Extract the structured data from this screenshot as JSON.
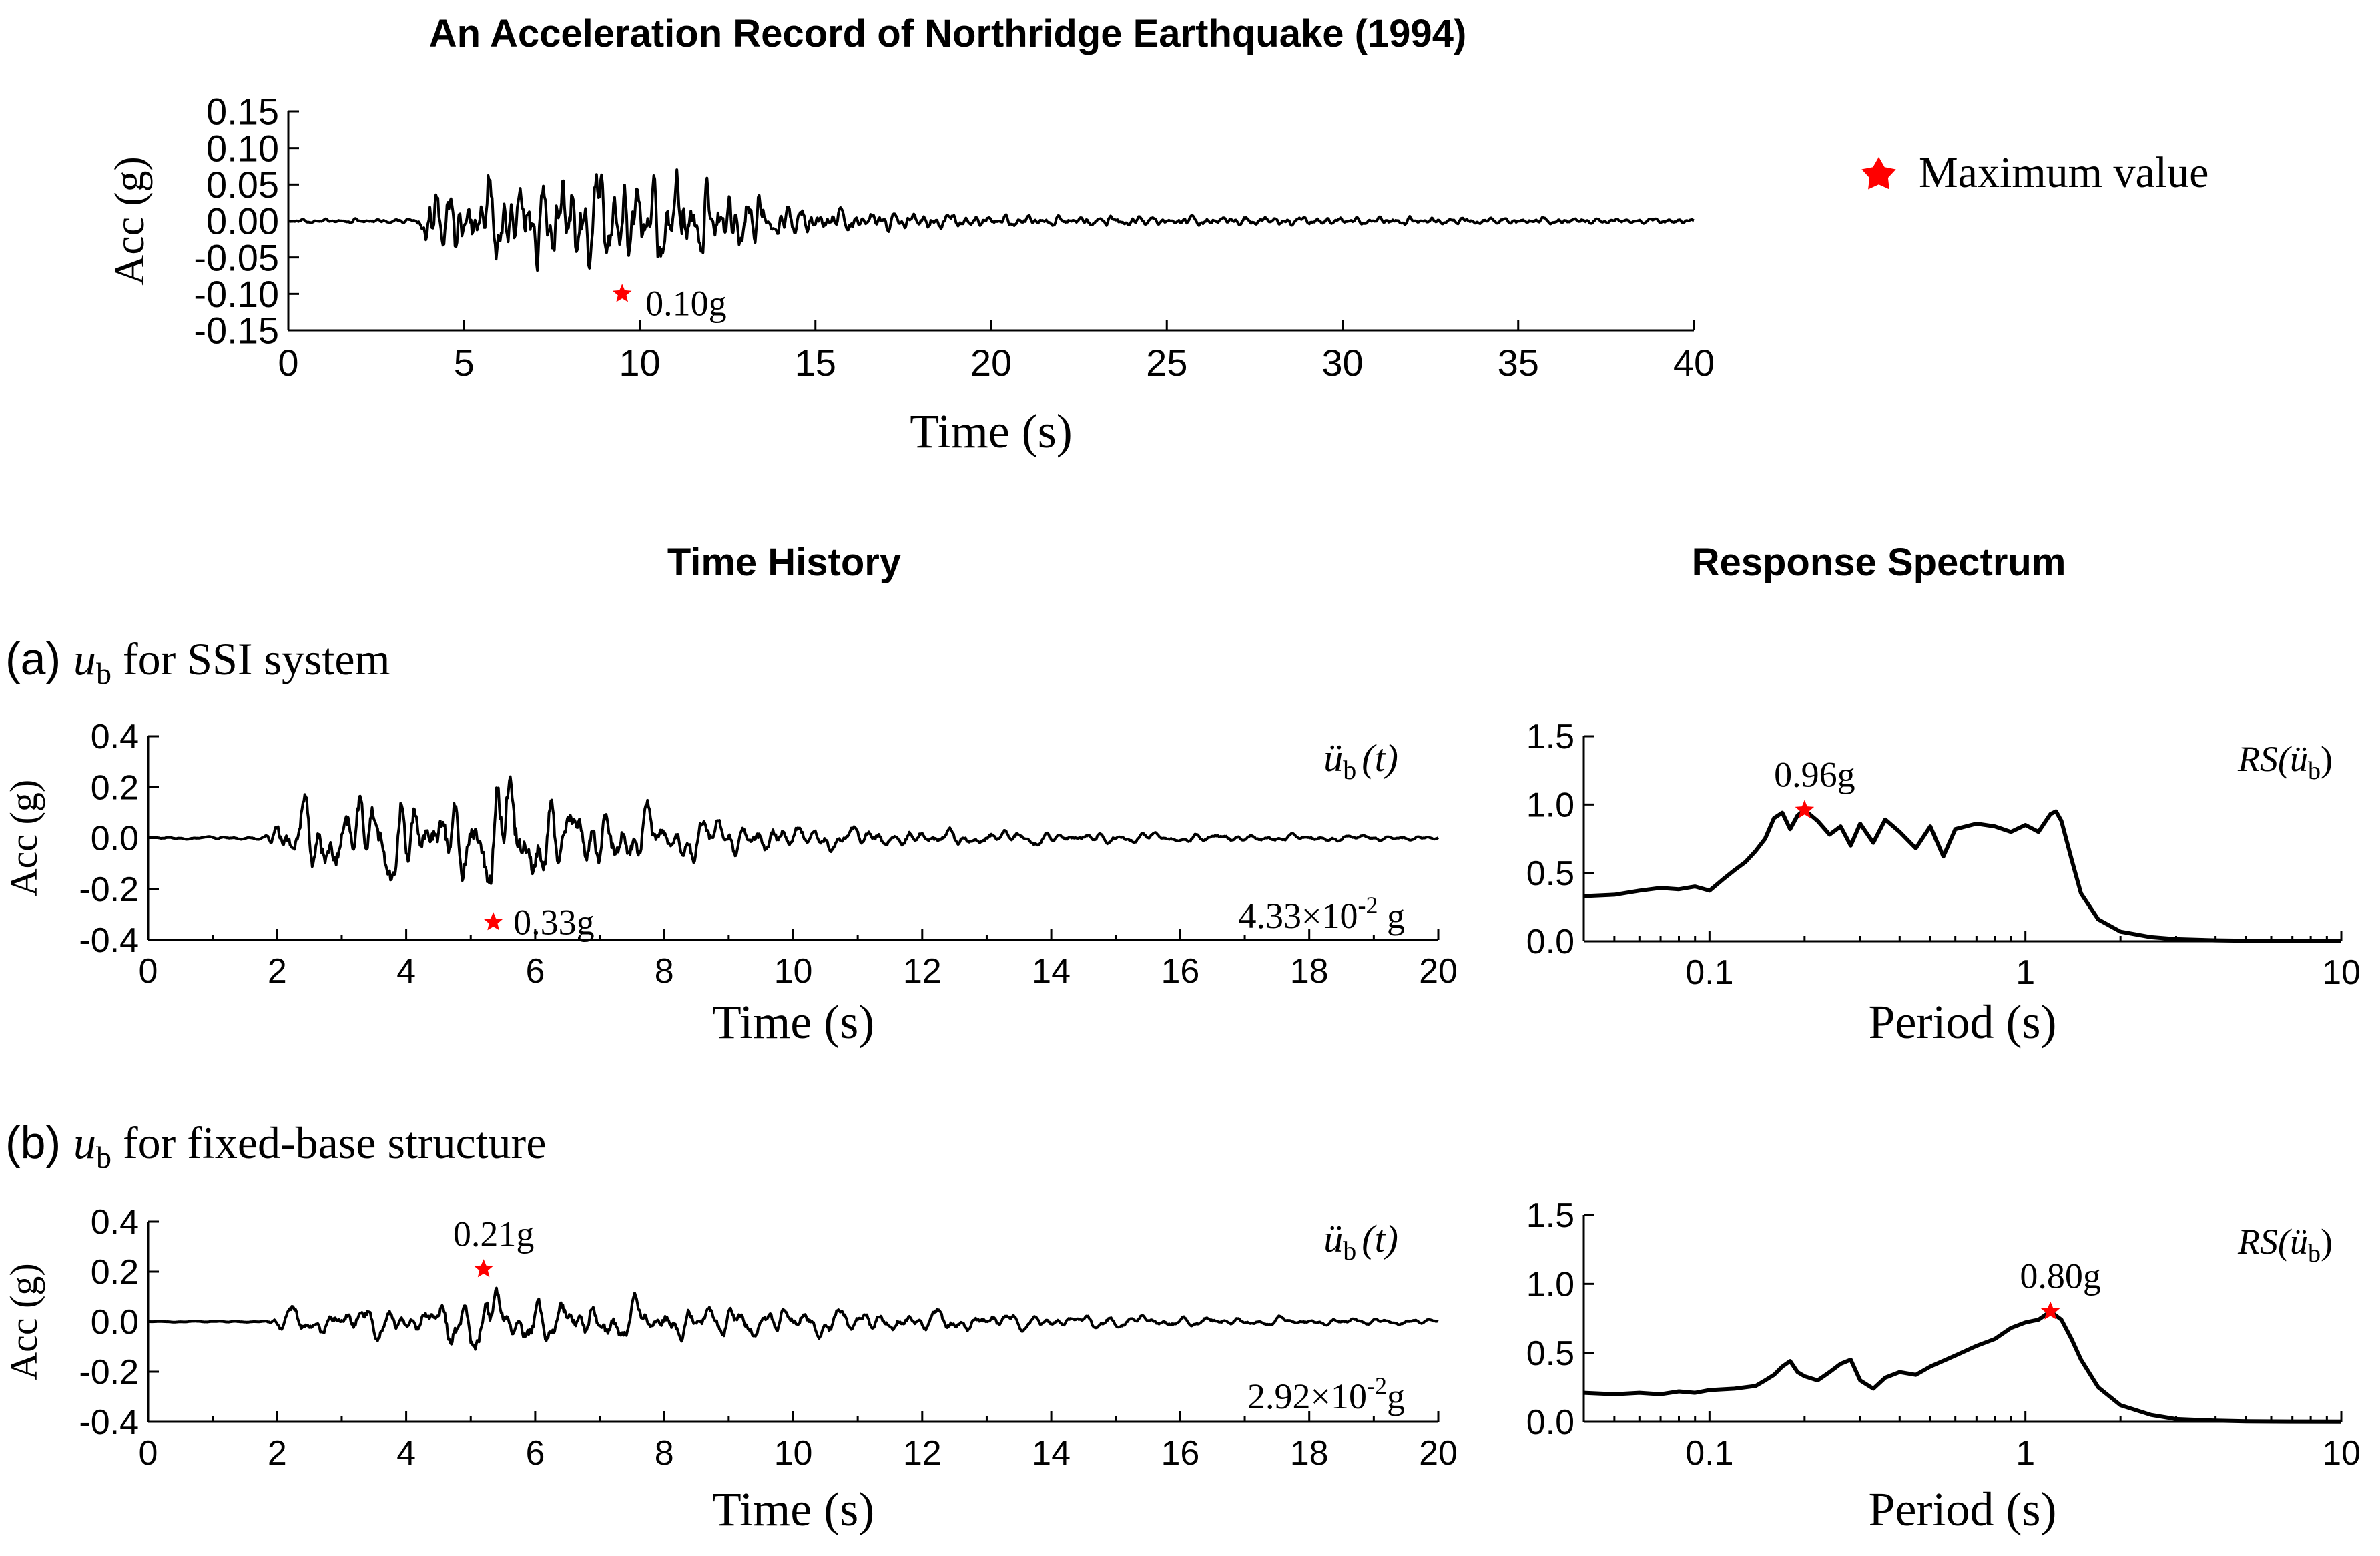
{
  "figure": {
    "main_title": "An Acceleration Record of Northridge Earthquake (1994)",
    "col_time_title": "Time History",
    "col_spec_title": "Response Spectrum",
    "legend_label": "Maximum value",
    "legend_symbol_color": "#ff0000",
    "label_a_prefix": "(a) ",
    "label_a_var": "u",
    "label_a_sub": "b",
    "label_a_rest": " for SSI system",
    "label_b_prefix": "(b) ",
    "label_b_var": "u",
    "label_b_sub": "b",
    "label_b_rest": " for fixed-base structure"
  },
  "chart_data": [
    {
      "id": "top",
      "type": "line",
      "title": "An Acceleration Record of Northridge Earthquake (1994)",
      "xlabel": "Time (s)",
      "ylabel": "Acc (g)",
      "xlim": [
        0,
        40
      ],
      "ylim": [
        -0.15,
        0.15
      ],
      "xticks": [
        0,
        5,
        10,
        15,
        20,
        25,
        30,
        35,
        40
      ],
      "xtick_labels": [
        "0",
        "5",
        "10",
        "15",
        "20",
        "25",
        "30",
        "35",
        "40"
      ],
      "yticks": [
        0.15,
        0.1,
        0.05,
        0.0,
        -0.05,
        -0.1,
        -0.15
      ],
      "ytick_labels": [
        "0.15",
        "0.10",
        "0.05",
        "0.00",
        "-0.05",
        "-0.10",
        "-0.15"
      ],
      "envelope": [
        [
          0,
          0.003
        ],
        [
          3.6,
          0.004
        ],
        [
          4.0,
          0.05
        ],
        [
          9.5,
          0.1
        ],
        [
          12.5,
          0.055
        ],
        [
          15,
          0.02
        ],
        [
          20,
          0.01
        ],
        [
          30,
          0.007
        ],
        [
          40,
          0.004
        ]
      ],
      "max_point": {
        "x": 9.5,
        "y": -0.1,
        "label": "0.10g"
      }
    },
    {
      "id": "a_time",
      "type": "line",
      "xlabel": "Time (s)",
      "ylabel": "Acc (g)",
      "xlim": [
        0,
        20
      ],
      "ylim": [
        -0.4,
        0.4
      ],
      "xticks": [
        0,
        2,
        4,
        6,
        8,
        10,
        12,
        14,
        16,
        18,
        20
      ],
      "xtick_labels": [
        "0",
        "2",
        "4",
        "6",
        "8",
        "10",
        "12",
        "14",
        "16",
        "18",
        "20"
      ],
      "yticks": [
        0.4,
        0.2,
        0.0,
        -0.2,
        -0.4
      ],
      "ytick_labels": [
        "0.4",
        "0.2",
        "0.0",
        "-0.2",
        "-0.4"
      ],
      "envelope": [
        [
          0,
          0.004
        ],
        [
          1.8,
          0.01
        ],
        [
          2.1,
          0.2
        ],
        [
          5.0,
          0.25
        ],
        [
          5.3,
          0.33
        ],
        [
          6.2,
          0.22
        ],
        [
          8.5,
          0.12
        ],
        [
          10,
          0.07
        ],
        [
          12,
          0.045
        ],
        [
          16,
          0.025
        ],
        [
          20,
          0.012
        ]
      ],
      "max_point": {
        "x": 5.35,
        "y": -0.33,
        "label": "0.33g"
      },
      "series_label_var": "ü",
      "series_label_sub": "b",
      "series_label_arg": "(t)",
      "rms_label": "4.33×10",
      "rms_exp": "-2",
      "rms_unit": " g"
    },
    {
      "id": "a_spec",
      "type": "line",
      "xscale": "log",
      "xlabel": "Period (s)",
      "xlim": [
        0.04,
        10
      ],
      "ylim": [
        0,
        1.5
      ],
      "xticks": [
        0.1,
        1,
        10
      ],
      "xtick_labels": [
        "0.1",
        "1",
        "10"
      ],
      "yticks": [
        1.5,
        1.0,
        0.5,
        0.0
      ],
      "ytick_labels": [
        "1.5",
        "1.0",
        "0.5",
        "0.0"
      ],
      "x": [
        0.04,
        0.05,
        0.06,
        0.07,
        0.08,
        0.09,
        0.1,
        0.11,
        0.12,
        0.13,
        0.14,
        0.15,
        0.16,
        0.17,
        0.18,
        0.19,
        0.2,
        0.22,
        0.24,
        0.26,
        0.28,
        0.3,
        0.33,
        0.36,
        0.4,
        0.45,
        0.5,
        0.55,
        0.6,
        0.7,
        0.8,
        0.9,
        1.0,
        1.1,
        1.2,
        1.25,
        1.3,
        1.4,
        1.5,
        1.7,
        2.0,
        2.5,
        3,
        4,
        5,
        7,
        10
      ],
      "y": [
        0.33,
        0.34,
        0.37,
        0.39,
        0.38,
        0.4,
        0.37,
        0.45,
        0.52,
        0.58,
        0.66,
        0.75,
        0.9,
        0.94,
        0.82,
        0.92,
        0.96,
        0.88,
        0.78,
        0.84,
        0.7,
        0.86,
        0.72,
        0.89,
        0.8,
        0.68,
        0.84,
        0.62,
        0.82,
        0.86,
        0.84,
        0.8,
        0.85,
        0.8,
        0.93,
        0.95,
        0.88,
        0.6,
        0.35,
        0.16,
        0.07,
        0.03,
        0.015,
        0.007,
        0.004,
        0.002,
        0.001
      ],
      "series_label": "RS(",
      "series_label_var": "ü",
      "series_label_sub": "b",
      "series_label_end": ")",
      "max_point": {
        "x": 0.2,
        "y": 0.96,
        "label": "0.96g"
      }
    },
    {
      "id": "b_time",
      "type": "line",
      "xlabel": "Time (s)",
      "ylabel": "Acc (g)",
      "xlim": [
        0,
        20
      ],
      "ylim": [
        -0.4,
        0.4
      ],
      "xticks": [
        0,
        2,
        4,
        6,
        8,
        10,
        12,
        14,
        16,
        18,
        20
      ],
      "xtick_labels": [
        "0",
        "2",
        "4",
        "6",
        "8",
        "10",
        "12",
        "14",
        "16",
        "18",
        "20"
      ],
      "yticks": [
        0.4,
        0.2,
        0.0,
        -0.2,
        -0.4
      ],
      "ytick_labels": [
        "0.4",
        "0.2",
        "0.0",
        "-0.2",
        "-0.4"
      ],
      "envelope": [
        [
          0,
          0.002
        ],
        [
          1.8,
          0.005
        ],
        [
          2.1,
          0.07
        ],
        [
          4.5,
          0.1
        ],
        [
          5.2,
          0.21
        ],
        [
          6.0,
          0.13
        ],
        [
          9.0,
          0.1
        ],
        [
          12,
          0.06
        ],
        [
          16,
          0.03
        ],
        [
          20,
          0.015
        ]
      ],
      "max_point": {
        "x": 5.2,
        "y": 0.21,
        "label": "0.21g"
      },
      "series_label_var": "ü",
      "series_label_sub": "b",
      "series_label_arg": "(t)",
      "rms_label": "2.92×10",
      "rms_exp": "-2",
      "rms_unit": "g"
    },
    {
      "id": "b_spec",
      "type": "line",
      "xscale": "log",
      "xlabel": "Period (s)",
      "xlim": [
        0.04,
        10
      ],
      "ylim": [
        0,
        1.5
      ],
      "xticks": [
        0.1,
        1,
        10
      ],
      "xtick_labels": [
        "0.1",
        "1",
        "10"
      ],
      "yticks": [
        1.5,
        1.0,
        0.5,
        0.0
      ],
      "ytick_labels": [
        "1.5",
        "1.0",
        "0.5",
        "0.0"
      ],
      "x": [
        0.04,
        0.05,
        0.06,
        0.07,
        0.08,
        0.09,
        0.1,
        0.12,
        0.14,
        0.15,
        0.16,
        0.17,
        0.18,
        0.19,
        0.2,
        0.22,
        0.24,
        0.26,
        0.28,
        0.3,
        0.33,
        0.36,
        0.4,
        0.45,
        0.5,
        0.6,
        0.7,
        0.8,
        0.9,
        1.0,
        1.1,
        1.2,
        1.3,
        1.4,
        1.5,
        1.7,
        2.0,
        2.5,
        3,
        4,
        5,
        7,
        10
      ],
      "y": [
        0.21,
        0.2,
        0.21,
        0.2,
        0.22,
        0.21,
        0.23,
        0.24,
        0.26,
        0.3,
        0.34,
        0.4,
        0.44,
        0.36,
        0.33,
        0.3,
        0.36,
        0.42,
        0.45,
        0.3,
        0.24,
        0.32,
        0.36,
        0.34,
        0.4,
        0.48,
        0.55,
        0.6,
        0.68,
        0.72,
        0.74,
        0.8,
        0.74,
        0.6,
        0.45,
        0.25,
        0.12,
        0.05,
        0.02,
        0.008,
        0.004,
        0.002,
        0.001
      ],
      "series_label": "RS(",
      "series_label_var": "ü",
      "series_label_sub": "b",
      "series_label_end": ")",
      "max_point": {
        "x": 1.2,
        "y": 0.8,
        "label": "0.80g"
      }
    }
  ]
}
